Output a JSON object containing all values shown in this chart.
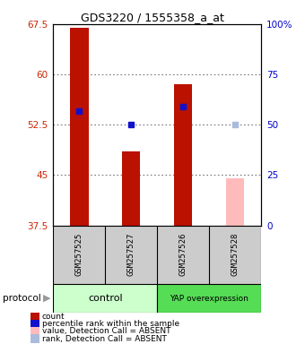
{
  "title": "GDS3220 / 1555358_a_at",
  "samples": [
    "GSM257525",
    "GSM257527",
    "GSM257526",
    "GSM257528"
  ],
  "ylim_left": [
    37.5,
    67.5
  ],
  "ylim_right": [
    0,
    100
  ],
  "yticks_left": [
    37.5,
    45.0,
    52.5,
    60.0,
    67.5
  ],
  "ytick_labels_left": [
    "37.5",
    "45",
    "52.5",
    "60",
    "67.5"
  ],
  "yticks_right": [
    0,
    25,
    50,
    75,
    100
  ],
  "ytick_labels_right": [
    "0",
    "25",
    "50",
    "75",
    "100%"
  ],
  "red_bar_values": [
    67.0,
    48.5,
    58.5,
    44.5
  ],
  "red_bar_absent": [
    false,
    false,
    false,
    true
  ],
  "blue_square_values": [
    54.5,
    52.5,
    55.2,
    52.5
  ],
  "blue_square_absent": [
    false,
    false,
    false,
    true
  ],
  "bar_width": 0.35,
  "bar_color_present": "#bb1100",
  "bar_color_absent": "#ffbbbb",
  "blue_color_present": "#1111cc",
  "blue_color_absent": "#aabbdd",
  "legend_items": [
    {
      "color": "#bb1100",
      "label": "count"
    },
    {
      "color": "#1111cc",
      "label": "percentile rank within the sample"
    },
    {
      "color": "#ffbbbb",
      "label": "value, Detection Call = ABSENT"
    },
    {
      "color": "#aabbdd",
      "label": "rank, Detection Call = ABSENT"
    }
  ],
  "protocol_label": "protocol",
  "grid_color": "#555555",
  "plot_bg": "#ffffff",
  "sample_box_color": "#cccccc",
  "group_info": [
    {
      "label": "control",
      "start": 0,
      "end": 1,
      "color": "#ccffcc"
    },
    {
      "label": "YAP overexpression",
      "start": 2,
      "end": 3,
      "color": "#55dd55"
    }
  ]
}
